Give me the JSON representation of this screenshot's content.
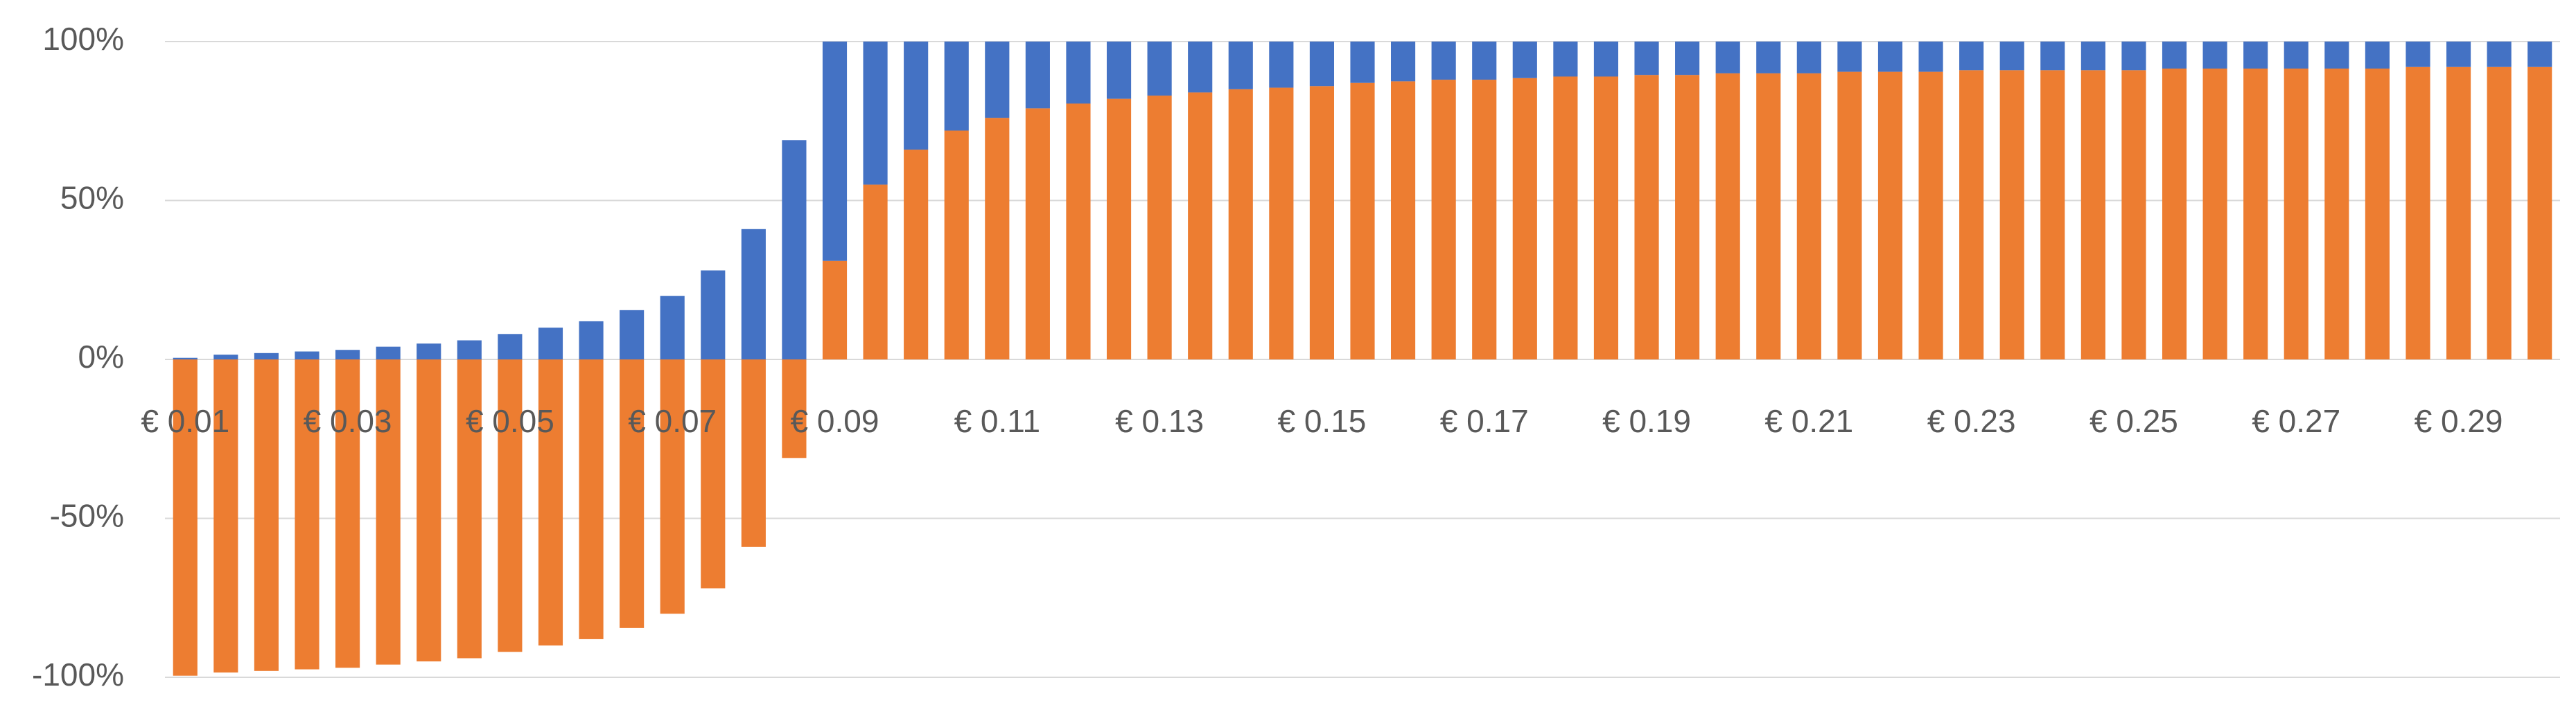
{
  "chart_data": {
    "type": "stacked_bar",
    "categories": [
      "€ 0.01",
      null,
      null,
      null,
      "€ 0.03",
      null,
      null,
      null,
      "€ 0.05",
      null,
      null,
      null,
      "€ 0.07",
      null,
      null,
      null,
      "€ 0.09",
      null,
      null,
      null,
      "€ 0.11",
      null,
      null,
      null,
      "€ 0.13",
      null,
      null,
      null,
      "€ 0.15",
      null,
      null,
      null,
      "€ 0.17",
      null,
      null,
      null,
      "€ 0.19",
      null,
      null,
      null,
      "€ 0.21",
      null,
      null,
      null,
      "€ 0.23",
      null,
      null,
      null,
      "€ 0.25",
      null,
      null,
      null,
      "€ 0.27",
      null,
      null,
      null,
      "€ 0.29",
      null,
      null
    ],
    "series": [
      {
        "color": "#ed7d31",
        "values": [
          -99.5,
          -98.5,
          -98,
          -97.5,
          -97,
          -96,
          -95,
          -94,
          -92,
          -90,
          -88,
          -84.5,
          -80,
          -72,
          -59,
          -31,
          31,
          55,
          66,
          72,
          76,
          79,
          80.5,
          82,
          83,
          84,
          85,
          85.5,
          86,
          87,
          87.5,
          88,
          88,
          88.5,
          89,
          89,
          89.5,
          89.5,
          90,
          90,
          90,
          90.5,
          90.5,
          90.5,
          91,
          91,
          91,
          91,
          91,
          91.5,
          91.5,
          91.5,
          91.5,
          91.5,
          91.5,
          92,
          92,
          92,
          92
        ]
      },
      {
        "color": "#4472c4",
        "values": [
          0.5,
          1.5,
          2,
          2.5,
          3,
          4,
          5,
          6,
          8,
          10,
          12,
          15.5,
          20,
          28,
          41,
          69,
          69,
          45,
          34,
          28,
          24,
          21,
          19.5,
          18,
          17,
          16,
          15,
          14.5,
          14,
          13,
          12.5,
          12,
          12,
          11.5,
          11,
          11,
          10.5,
          10.5,
          10,
          10,
          10,
          9.5,
          9.5,
          9.5,
          9,
          9,
          9,
          9,
          9,
          8.5,
          8.5,
          8.5,
          8.5,
          8.5,
          8.5,
          8,
          8,
          8,
          8
        ]
      }
    ],
    "ylim": [
      -100,
      100
    ],
    "yticks": [
      {
        "value": -100,
        "label": "-100%"
      },
      {
        "value": -50,
        "label": "-50%"
      },
      {
        "value": 0,
        "label": "0%"
      },
      {
        "value": 50,
        "label": "50%"
      },
      {
        "value": 100,
        "label": "100%"
      }
    ],
    "grid": true
  }
}
